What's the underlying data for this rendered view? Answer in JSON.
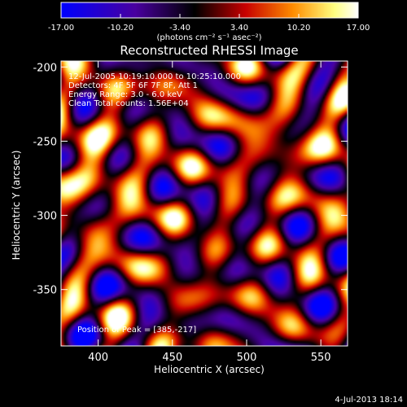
{
  "colorbar": {
    "ticks": [
      "-17.00",
      "-10.20",
      "-3.40",
      "3.40",
      "10.20",
      "17.00"
    ],
    "tick_values": [
      -17.0,
      -10.2,
      -3.4,
      3.4,
      10.2,
      17.0
    ],
    "range": [
      -17.0,
      17.0
    ],
    "unit_label": "(photons cm⁻² s⁻¹ asec⁻²)"
  },
  "chart_data": {
    "type": "heatmap",
    "title": "Reconstructed RHESSI Image",
    "xlabel": "Heliocentric X (arcsec)",
    "ylabel": "Heliocentric Y (arcsec)",
    "xlim": [
      375,
      568
    ],
    "ylim": [
      -388,
      -196
    ],
    "xticks": [
      400,
      450,
      500,
      550
    ],
    "yticks": [
      -200,
      -250,
      -300,
      -350
    ],
    "colormap": [
      "#0000ff",
      "#4a00a0",
      "#000000",
      "#c80000",
      "#ff8c00",
      "#ffff80",
      "#ffffff"
    ],
    "grid": false,
    "legend": "none",
    "annotations": {
      "time_range": "12-Jul-2005 10:19:10.000 to 10:25:10.000",
      "detectors": "Detectors: 4F 5F 6F 7F 8F, Att 1",
      "energy": "Energy Range: 3.0 - 6.0 keV",
      "method": "Clean    Total counts: 1.56E+04",
      "peak": "Position of Peak = [385,-217]"
    },
    "peak": {
      "x": 385,
      "y": -217
    }
  },
  "footer": {
    "timestamp": "4-Jul-2013 18:14"
  }
}
